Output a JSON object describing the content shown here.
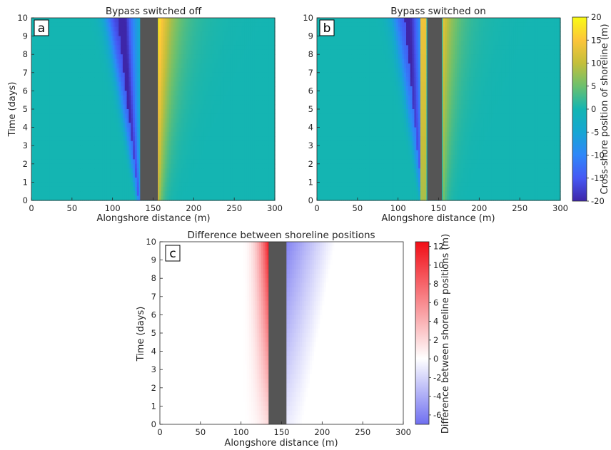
{
  "chart_data": [
    {
      "type": "heatmap",
      "panel_label": "a",
      "title": "Bypass switched off",
      "xlabel": "Alongshore distance (m)",
      "ylabel": "Time (days)",
      "xlim": [
        0,
        300
      ],
      "ylim": [
        0,
        10
      ],
      "xticks": [
        "0",
        "50",
        "100",
        "150",
        "200",
        "250",
        "300"
      ],
      "yticks": [
        "0",
        "1",
        "2",
        "3",
        "4",
        "5",
        "6",
        "7",
        "8",
        "9",
        "10"
      ],
      "colormap": "parula",
      "color_range": [
        -20,
        20
      ],
      "structure": {
        "x_from": 134,
        "x_to": 156,
        "color": "#555555"
      },
      "features": {
        "updrift_minimum": {
          "x_at_day0": 132,
          "x_at_day10": 106,
          "half_width_day0": 3,
          "half_width_day10": 16,
          "value": -17
        },
        "downdrift_maximum": {
          "x_start": 156,
          "value_day0": 12,
          "value_day10": 19,
          "decay_day0": 5,
          "decay_day10": 20
        }
      }
    },
    {
      "type": "heatmap",
      "panel_label": "b",
      "title": "Bypass switched on",
      "xlabel": "Alongshore distance (m)",
      "ylabel": "",
      "xlim": [
        0,
        300
      ],
      "ylim": [
        0,
        10
      ],
      "xticks": [
        "0",
        "50",
        "100",
        "150",
        "200",
        "250",
        "300"
      ],
      "yticks": [
        "0",
        "1",
        "2",
        "3",
        "4",
        "5",
        "6",
        "7",
        "8",
        "9",
        "10"
      ],
      "colormap": "parula",
      "color_range": [
        -20,
        20
      ],
      "structure": {
        "x_from": 136,
        "x_to": 154,
        "color": "#555555"
      },
      "features": {
        "updrift_minimum": {
          "x_at_day0": 130,
          "x_at_day10": 108,
          "half_width_day0": 3,
          "half_width_day10": 16,
          "value": -15
        },
        "near_structure_accretion": {
          "x_from": 128,
          "x_to": 135,
          "value": 14
        },
        "downdrift_maximum": {
          "x_start": 154,
          "value_day0": 8,
          "value_day10": 14,
          "decay_day0": 5,
          "decay_day10": 18
        }
      },
      "colorbar": {
        "label": "Cross-shore position of shoreline (m)",
        "ticks": [
          "20",
          "15",
          "10",
          "5",
          "0",
          "-5",
          "-10",
          "-15",
          "-20"
        ]
      }
    },
    {
      "type": "heatmap",
      "panel_label": "c",
      "title": "Difference between shoreline positions",
      "xlabel": "Alongshore distance (m)",
      "ylabel": "Time (days)",
      "xlim": [
        0,
        300
      ],
      "ylim": [
        0,
        10
      ],
      "xticks": [
        "0",
        "50",
        "100",
        "150",
        "200",
        "250",
        "300"
      ],
      "yticks": [
        "0",
        "1",
        "2",
        "3",
        "4",
        "5",
        "6",
        "7",
        "8",
        "9",
        "10"
      ],
      "colormap": "blue-white-red",
      "color_range": [
        -7,
        12.5
      ],
      "structure": {
        "x_from": 134,
        "x_to": 156,
        "color": "#555555"
      },
      "features": {
        "updrift_positive": {
          "x_from": 100,
          "x_to": 134,
          "value_day10": 12,
          "value_day0": 2
        },
        "downdrift_negative": {
          "x_from": 156,
          "x_to": 215,
          "value_day10": -6,
          "value_day0": -1
        }
      },
      "colorbar": {
        "label": "Difference between shoreline positions (m)",
        "ticks": [
          "12",
          "10",
          "8",
          "6",
          "4",
          "2",
          "0",
          "-2",
          "-4",
          "-6"
        ]
      }
    }
  ]
}
